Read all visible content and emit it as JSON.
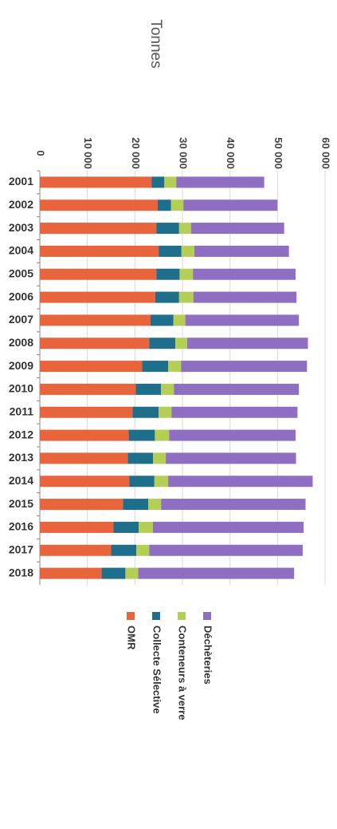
{
  "chart_data": {
    "type": "bar",
    "stacked": true,
    "orientation": "rotated-90-clockwise",
    "ylabel": "Tonnes",
    "ylim": [
      0,
      60000
    ],
    "yticks": [
      "0",
      "10 000",
      "20 000",
      "30 000",
      "40 000",
      "50 000",
      "60 000"
    ],
    "ytick_values": [
      0,
      10000,
      20000,
      30000,
      40000,
      50000,
      60000
    ],
    "grid": true,
    "legend_position": "bottom",
    "categories": [
      "2001",
      "2002",
      "2003",
      "2004",
      "2005",
      "2006",
      "2007",
      "2008",
      "2009",
      "2010",
      "2011",
      "2012",
      "2013",
      "2014",
      "2015",
      "2016",
      "2017",
      "2018"
    ],
    "series": [
      {
        "name": "OMR",
        "color": "#e8643c",
        "values": [
          23500,
          24800,
          24500,
          25000,
          24500,
          24300,
          23300,
          23000,
          21500,
          20200,
          19500,
          18700,
          18500,
          18800,
          17500,
          15500,
          15000,
          13000
        ]
      },
      {
        "name": "Collecte Sélective",
        "color": "#1f6e8c",
        "values": [
          2700,
          2800,
          4800,
          4800,
          4900,
          5000,
          4800,
          5500,
          5500,
          5300,
          5500,
          5500,
          5300,
          5300,
          5300,
          5300,
          5300,
          5000
        ]
      },
      {
        "name": "Conteneurs à verre",
        "color": "#b5cf56",
        "values": [
          2500,
          2600,
          2500,
          2700,
          2800,
          3000,
          2500,
          2500,
          2700,
          2700,
          2700,
          3000,
          2700,
          2900,
          2700,
          3000,
          2700,
          2700
        ]
      },
      {
        "name": "Déchèteries",
        "color": "#8e6fc2",
        "values": [
          18500,
          19800,
          19600,
          19900,
          21600,
          21700,
          23900,
          25400,
          26500,
          26300,
          26500,
          26600,
          27400,
          30400,
          30400,
          31700,
          32300,
          32800
        ]
      }
    ]
  }
}
